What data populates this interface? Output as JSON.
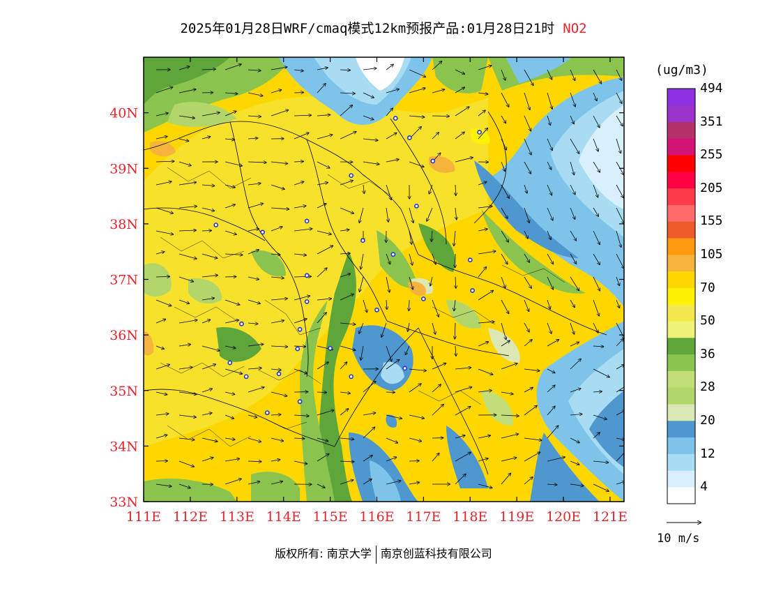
{
  "title": {
    "main": "2025年01月28日WRF/cmaq模式12km预报产品:01月28日21时",
    "species": "NO2"
  },
  "colorbar": {
    "units": "(ug/m3)",
    "bins": [
      {
        "color": "#ffffff"
      },
      {
        "color": "#d7f0fb"
      },
      {
        "color": "#a8dcf3"
      },
      {
        "color": "#7ec4ea"
      },
      {
        "color": "#4f98cf"
      },
      {
        "color": "#dbe8b4"
      },
      {
        "color": "#b2d66a"
      },
      {
        "color": "#c3dd78"
      },
      {
        "color": "#8ac34e"
      },
      {
        "color": "#5ea63a"
      },
      {
        "color": "#eef278"
      },
      {
        "color": "#f3e94e"
      },
      {
        "color": "#fff200"
      },
      {
        "color": "#fed700"
      },
      {
        "color": "#f6b43c"
      },
      {
        "color": "#ff9a10"
      },
      {
        "color": "#ee5a2a"
      },
      {
        "color": "#ff6a6a"
      },
      {
        "color": "#ff3a4a"
      },
      {
        "color": "#ff0044"
      },
      {
        "color": "#ff0000"
      },
      {
        "color": "#d31374"
      },
      {
        "color": "#b23268"
      },
      {
        "color": "#9a33cc"
      },
      {
        "color": "#8e2fe0"
      }
    ],
    "labels": [
      "4",
      "12",
      "20",
      "28",
      "36",
      "50",
      "70",
      "105",
      "155",
      "205",
      "255",
      "351",
      "494"
    ]
  },
  "axes": {
    "lon_labels": [
      "111E",
      "112E",
      "113E",
      "114E",
      "115E",
      "116E",
      "117E",
      "118E",
      "119E",
      "120E",
      "121E"
    ],
    "lat_labels": [
      "33N",
      "34N",
      "35N",
      "36N",
      "37N",
      "38N",
      "39N",
      "40N"
    ],
    "lon_range": [
      111,
      121.3
    ],
    "lat_range": [
      33,
      41
    ],
    "label_color": "#e8242b"
  },
  "wind_reference": {
    "label": "10 m/s"
  },
  "copyright": {
    "left": "版权所有: 南京大学",
    "right": "南京创蓝科技有限公司"
  },
  "cities": [
    {
      "lon": 116.4,
      "lat": 39.9
    },
    {
      "lon": 116.7,
      "lat": 39.55
    },
    {
      "lon": 117.2,
      "lat": 39.13
    },
    {
      "lon": 118.2,
      "lat": 39.65
    },
    {
      "lon": 115.45,
      "lat": 38.87
    },
    {
      "lon": 116.85,
      "lat": 38.32
    },
    {
      "lon": 114.5,
      "lat": 38.05
    },
    {
      "lon": 112.55,
      "lat": 37.98
    },
    {
      "lon": 113.55,
      "lat": 37.85
    },
    {
      "lon": 115.7,
      "lat": 37.7
    },
    {
      "lon": 116.35,
      "lat": 37.45
    },
    {
      "lon": 118.0,
      "lat": 37.35
    },
    {
      "lon": 114.5,
      "lat": 37.07
    },
    {
      "lon": 117.0,
      "lat": 36.65
    },
    {
      "lon": 118.05,
      "lat": 36.8
    },
    {
      "lon": 114.5,
      "lat": 36.6
    },
    {
      "lon": 116.0,
      "lat": 36.45
    },
    {
      "lon": 113.1,
      "lat": 36.2
    },
    {
      "lon": 114.35,
      "lat": 36.1
    },
    {
      "lon": 114.3,
      "lat": 35.75
    },
    {
      "lon": 115.0,
      "lat": 35.76
    },
    {
      "lon": 112.85,
      "lat": 35.5
    },
    {
      "lon": 113.2,
      "lat": 35.25
    },
    {
      "lon": 113.9,
      "lat": 35.3
    },
    {
      "lon": 115.45,
      "lat": 35.25
    },
    {
      "lon": 116.6,
      "lat": 35.4
    },
    {
      "lon": 114.35,
      "lat": 34.8
    },
    {
      "lon": 113.65,
      "lat": 34.6
    }
  ]
}
